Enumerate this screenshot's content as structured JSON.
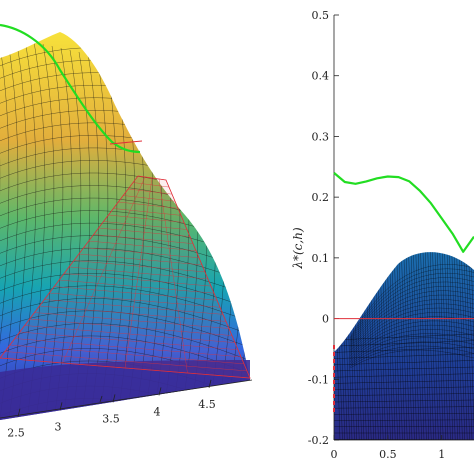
{
  "chart_data": [
    {
      "type": "surface",
      "panel": "left",
      "title": "",
      "xlabel": "",
      "ylabel": "",
      "x_ticks": [
        "2.5",
        "3",
        "3.5",
        "4",
        "4.5"
      ],
      "series": [
        {
          "name": "",
          "role": "surface",
          "colormap": "parula"
        },
        {
          "name": "",
          "role": "zero-plane",
          "color": "#e0303a"
        },
        {
          "name": "",
          "role": "curve",
          "color": "#22dd22"
        }
      ]
    },
    {
      "type": "line",
      "panel": "right",
      "title": "",
      "xlabel": "",
      "ylabel": "λ*(c,h)",
      "ylim": [
        -0.2,
        0.5
      ],
      "y_ticks": [
        "0.5",
        "0.4",
        "0.3",
        "0.2",
        "0.1",
        "0",
        "-0.1",
        "-0.2"
      ],
      "x_ticks": [
        "0",
        "0.5",
        "1"
      ],
      "series": [
        {
          "name": "",
          "color": "#22dd22",
          "x": [
            0,
            0.1,
            0.2,
            0.3,
            0.4,
            0.5,
            0.6,
            0.7,
            0.8,
            0.9,
            1.0,
            1.1,
            1.2,
            1.3
          ],
          "y": [
            0.24,
            0.225,
            0.222,
            0.226,
            0.231,
            0.234,
            0.233,
            0.226,
            0.21,
            0.19,
            0.165,
            0.14,
            0.11,
            0.135
          ]
        },
        {
          "name": "",
          "color": "#e0303a",
          "x": [
            0,
            1.3
          ],
          "y": [
            0,
            0
          ]
        }
      ]
    }
  ]
}
